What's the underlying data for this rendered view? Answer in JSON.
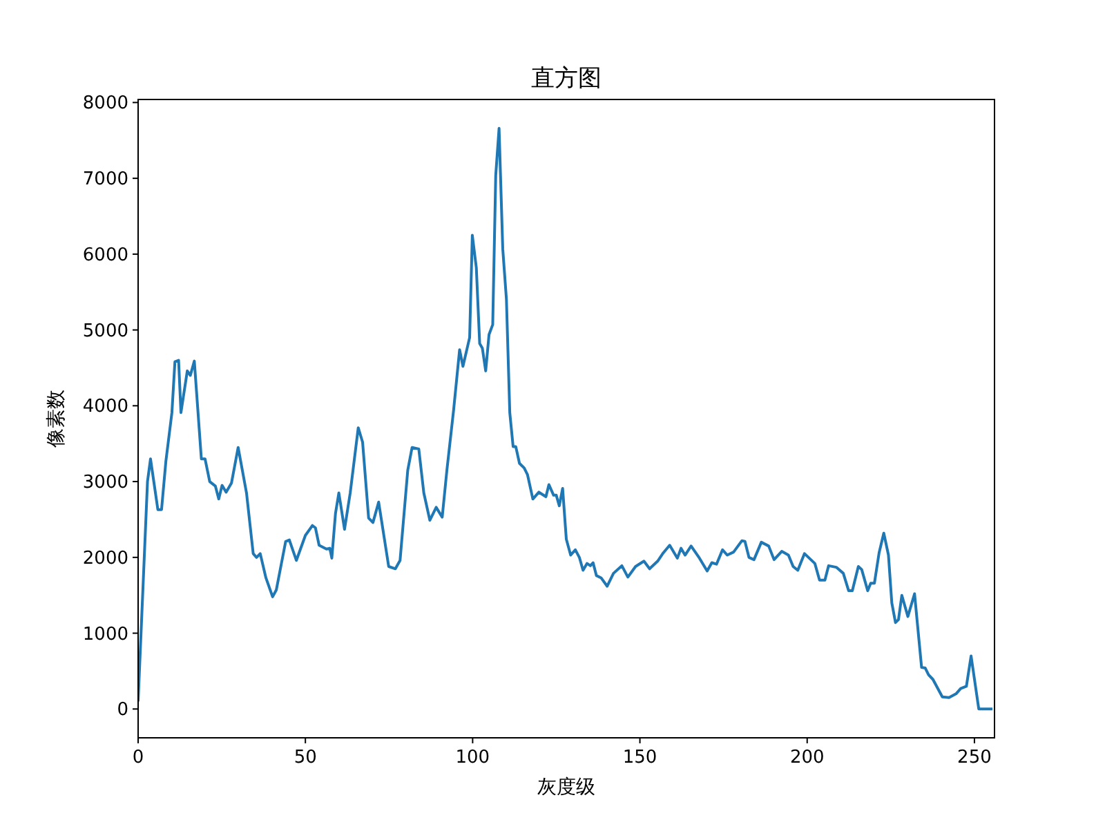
{
  "chart_data": {
    "type": "line",
    "title": "直方图",
    "xlabel": "灰度级",
    "ylabel": "像素数",
    "xlim": [
      0,
      256
    ],
    "ylim": [
      -380,
      8040
    ],
    "xticks": [
      0,
      50,
      100,
      150,
      200,
      250
    ],
    "yticks": [
      0,
      1000,
      2000,
      3000,
      4000,
      5000,
      6000,
      7000,
      8000
    ],
    "grid": false,
    "series": [
      {
        "color": "#1f77b4",
        "x": [
          0,
          2.8,
          3.7,
          5.9,
          7.0,
          8.3,
          10.1,
          11.0,
          12.1,
          12.8,
          14.7,
          15.6,
          16.8,
          18.9,
          20,
          21.4,
          23.1,
          24.1,
          25.1,
          26.3,
          27.9,
          29.9,
          32.4,
          34.4,
          35.4,
          36.5,
          38.2,
          40.2,
          41.3,
          44.1,
          45.2,
          47.3,
          50,
          52.1,
          53,
          54.1,
          56.3,
          57.3,
          57.9,
          59.0,
          60.0,
          61.7,
          63.4,
          65.8,
          67.1,
          68.9,
          70.2,
          71.9,
          74.9,
          76.9,
          78.3,
          80.6,
          81.9,
          83.9,
          85.4,
          87.2,
          89.1,
          90.9,
          92.3,
          94.3,
          96.1,
          97.1,
          99.1,
          99.9,
          101.1,
          102.1,
          102.9,
          103.9,
          104.9,
          106,
          106.9,
          107.9,
          109,
          110.1,
          111.1,
          112.1,
          112.9,
          114,
          115.4,
          116.4,
          118.0,
          119.8,
          121.9,
          122.8,
          124.2,
          125,
          125.9,
          126.9,
          128,
          129.3,
          130.7,
          131.9,
          133,
          134.2,
          135.2,
          136,
          137,
          138.4,
          140.2,
          142.1,
          144.6,
          146.4,
          148.7,
          151.2,
          152.9,
          155.3,
          157,
          158.9,
          161.2,
          162.3,
          163.5,
          165.3,
          167.8,
          170.1,
          171.5,
          172.9,
          174.7,
          176.1,
          178,
          180.5,
          181.4,
          182.6,
          184.1,
          186.3,
          188.5,
          190.1,
          192.4,
          194.4,
          195.8,
          197.2,
          199.2,
          202.3,
          203.7,
          205.3,
          206.4,
          208.7,
          210.8,
          212.4,
          213.5,
          215.3,
          216.3,
          218.1,
          219,
          220.1,
          221.5,
          222.9,
          224.3,
          225.3,
          226.4,
          227.3,
          228.3,
          230.1,
          232.1,
          234.2,
          235.3,
          236.3,
          237.6,
          240.4,
          242.4,
          244.5,
          245.9,
          247.6,
          249,
          251.3,
          255.4
        ],
        "values": [
          100,
          3000,
          3300,
          2630,
          2630,
          3270,
          3910,
          4580,
          4600,
          3910,
          4460,
          4400,
          4590,
          3300,
          3300,
          3000,
          2940,
          2770,
          2950,
          2860,
          2980,
          3450,
          2850,
          2050,
          2000,
          2050,
          1730,
          1480,
          1570,
          2210,
          2230,
          1960,
          2290,
          2420,
          2390,
          2160,
          2110,
          2120,
          1990,
          2580,
          2850,
          2370,
          2850,
          3710,
          3520,
          2520,
          2460,
          2730,
          1880,
          1850,
          1960,
          3150,
          3450,
          3430,
          2850,
          2490,
          2660,
          2530,
          3150,
          3940,
          4740,
          4520,
          4900,
          6250,
          5820,
          4820,
          4760,
          4460,
          4940,
          5070,
          7040,
          7660,
          6070,
          5400,
          3910,
          3460,
          3460,
          3240,
          3180,
          3090,
          2770,
          2860,
          2800,
          2960,
          2820,
          2820,
          2680,
          2910,
          2240,
          2030,
          2100,
          2000,
          1830,
          1920,
          1890,
          1930,
          1760,
          1730,
          1620,
          1790,
          1890,
          1740,
          1880,
          1950,
          1850,
          1950,
          2060,
          2160,
          1990,
          2120,
          2030,
          2150,
          1990,
          1820,
          1930,
          1910,
          2100,
          2030,
          2070,
          2220,
          2210,
          2000,
          1970,
          2200,
          2150,
          1970,
          2080,
          2030,
          1880,
          1830,
          2050,
          1920,
          1700,
          1700,
          1890,
          1870,
          1790,
          1560,
          1560,
          1880,
          1840,
          1560,
          1660,
          1660,
          2060,
          2320,
          2030,
          1400,
          1140,
          1180,
          1500,
          1220,
          1520,
          550,
          540,
          450,
          390,
          160,
          150,
          200,
          270,
          300,
          700,
          0,
          0
        ]
      }
    ]
  }
}
